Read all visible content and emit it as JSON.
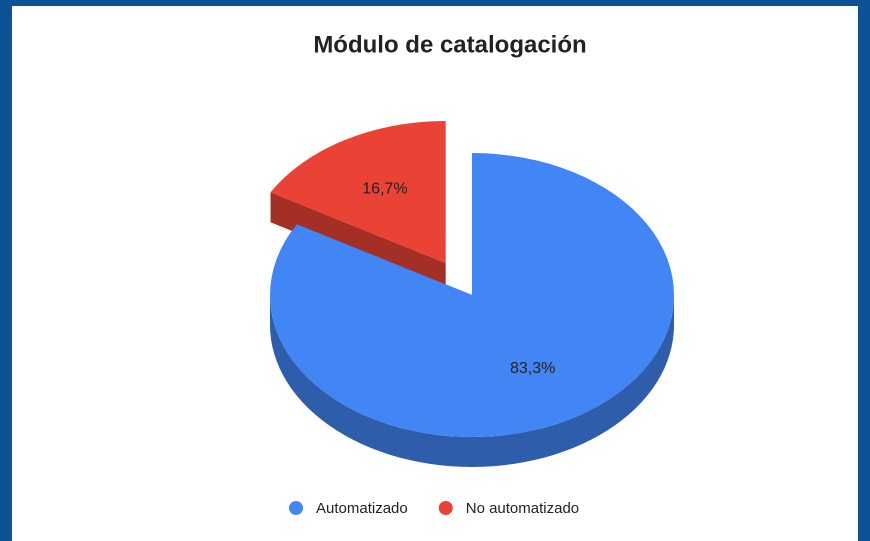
{
  "chart_data": {
    "type": "pie",
    "title": "Módulo de catalogación",
    "categories": [
      "Automatizado",
      "No automatizado"
    ],
    "values": [
      83.3,
      16.7
    ],
    "value_labels": [
      "83,3%",
      "16,7%"
    ],
    "colors": [
      "#4285f4",
      "#ea4335"
    ],
    "legend": "bottom"
  }
}
